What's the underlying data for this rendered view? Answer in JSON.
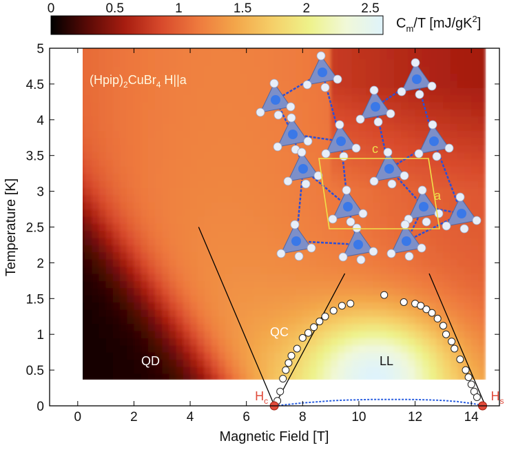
{
  "chart_data": {
    "type": "heatmap",
    "xlabel": "Magnetic Field [T]",
    "ylabel": "Temperature [K]",
    "xlim": [
      -1,
      15
    ],
    "ylim": [
      0,
      5
    ],
    "data_extent": {
      "x": [
        0,
        14.5
      ],
      "y": [
        0.35,
        5
      ]
    },
    "x_ticks": [
      "0",
      "2",
      "4",
      "6",
      "8",
      "10",
      "12",
      "14"
    ],
    "y_ticks": [
      "0",
      "0.5",
      "1",
      "1.5",
      "2",
      "2.5",
      "3",
      "3.5",
      "4",
      "4.5",
      "5"
    ],
    "colorbar": {
      "label_main": "C",
      "label_sub": "m",
      "label_rest": "/T [mJ/gK",
      "label_sup": "2",
      "label_end": "]",
      "range": [
        0,
        2.6
      ],
      "ticks": [
        "0",
        "0.5",
        "1",
        "1.5",
        "2",
        "2.5"
      ],
      "colors": [
        "#000000",
        "#5a0a06",
        "#a71d10",
        "#d84a2c",
        "#ee7a3e",
        "#f3a64a",
        "#f5cf68",
        "#eef28a",
        "#f0f8d8",
        "#dff3fb"
      ]
    },
    "grid": false,
    "material_label": {
      "base": "(Hpip)",
      "sub1": "2",
      "mid": "CuBr",
      "sub2": "4",
      "tail": " H||a"
    },
    "region_labels": [
      "QD",
      "QC",
      "LL"
    ],
    "critical_fields": [
      {
        "label": "H",
        "sub": "c",
        "x": 6.99
      },
      {
        "label": "H",
        "sub": "s",
        "x": 14.4
      }
    ],
    "phase_boundary_points": [
      {
        "x": 7.1,
        "y": 0.07
      },
      {
        "x": 7.2,
        "y": 0.2
      },
      {
        "x": 7.3,
        "y": 0.38
      },
      {
        "x": 7.4,
        "y": 0.5
      },
      {
        "x": 7.5,
        "y": 0.6
      },
      {
        "x": 7.6,
        "y": 0.7
      },
      {
        "x": 7.8,
        "y": 0.8
      },
      {
        "x": 8.0,
        "y": 0.95
      },
      {
        "x": 8.2,
        "y": 1.02
      },
      {
        "x": 8.4,
        "y": 1.1
      },
      {
        "x": 8.6,
        "y": 1.18
      },
      {
        "x": 8.8,
        "y": 1.25
      },
      {
        "x": 9.1,
        "y": 1.33
      },
      {
        "x": 9.4,
        "y": 1.4
      },
      {
        "x": 9.7,
        "y": 1.43
      },
      {
        "x": 10.9,
        "y": 1.55
      },
      {
        "x": 11.6,
        "y": 1.45
      },
      {
        "x": 12.0,
        "y": 1.43
      },
      {
        "x": 12.2,
        "y": 1.4
      },
      {
        "x": 12.4,
        "y": 1.35
      },
      {
        "x": 12.6,
        "y": 1.3
      },
      {
        "x": 12.8,
        "y": 1.22
      },
      {
        "x": 13.0,
        "y": 1.12
      },
      {
        "x": 13.1,
        "y": 1.0
      },
      {
        "x": 13.3,
        "y": 0.9
      },
      {
        "x": 13.4,
        "y": 0.8
      },
      {
        "x": 13.6,
        "y": 0.65
      },
      {
        "x": 13.8,
        "y": 0.5
      },
      {
        "x": 13.9,
        "y": 0.4
      },
      {
        "x": 14.0,
        "y": 0.3
      },
      {
        "x": 14.1,
        "y": 0.2
      },
      {
        "x": 14.2,
        "y": 0.12
      }
    ],
    "crossover_lines": [
      {
        "points": [
          [
            4.3,
            2.5
          ],
          [
            7.0,
            0
          ]
        ]
      },
      {
        "points": [
          [
            7.0,
            0
          ],
          [
            9.5,
            1.85
          ]
        ]
      },
      {
        "points": [
          [
            12.5,
            1.85
          ],
          [
            14.5,
            0
          ]
        ]
      }
    ],
    "low_temperature_curve": [
      [
        7.0,
        0.0
      ],
      [
        7.5,
        0.02
      ],
      [
        8.0,
        0.04
      ],
      [
        8.5,
        0.055
      ],
      [
        9.0,
        0.07
      ],
      [
        9.5,
        0.08
      ],
      [
        10.0,
        0.085
      ],
      [
        10.5,
        0.09
      ],
      [
        11.0,
        0.09
      ],
      [
        11.5,
        0.09
      ],
      [
        12.0,
        0.088
      ],
      [
        12.5,
        0.083
      ],
      [
        13.0,
        0.075
      ],
      [
        13.5,
        0.06
      ],
      [
        14.0,
        0.035
      ],
      [
        14.5,
        0.0
      ]
    ],
    "crystal_inset": {
      "axis_labels": [
        "c",
        "a"
      ]
    }
  }
}
